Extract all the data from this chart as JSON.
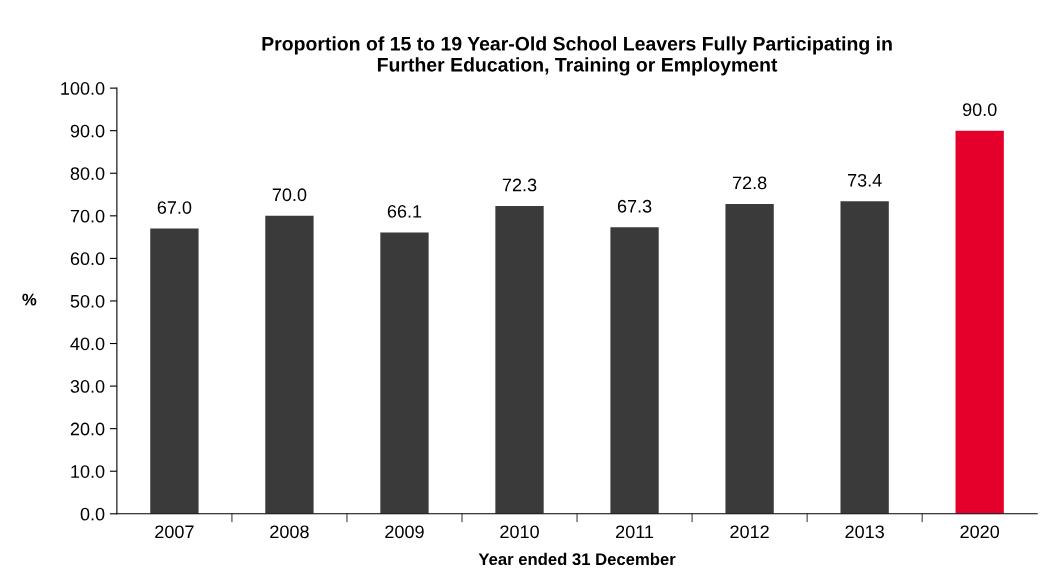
{
  "chart_data": {
    "type": "bar",
    "title": "Proportion of 15 to 19 Year-Old School Leavers Fully Participating in\nFurther Education, Training or Employment",
    "xlabel": "Year ended 31 December",
    "ylabel": "%",
    "categories": [
      "2007",
      "2008",
      "2009",
      "2010",
      "2011",
      "2012",
      "2013",
      "2020"
    ],
    "values": [
      67.0,
      70.0,
      66.1,
      72.3,
      67.3,
      72.8,
      73.4,
      90.0
    ],
    "value_labels": [
      "67.0",
      "70.0",
      "66.1",
      "72.3",
      "67.3",
      "72.8",
      "73.4",
      "90.0"
    ],
    "colors": [
      "#3a3a3a",
      "#3a3a3a",
      "#3a3a3a",
      "#3a3a3a",
      "#3a3a3a",
      "#3a3a3a",
      "#3a3a3a",
      "#e4002b"
    ],
    "ylim": [
      0,
      100
    ],
    "yticks": [
      {
        "value": 0,
        "label": "0.0"
      },
      {
        "value": 10,
        "label": "10.0"
      },
      {
        "value": 20,
        "label": "20.0"
      },
      {
        "value": 30,
        "label": "30.0"
      },
      {
        "value": 40,
        "label": "40.0"
      },
      {
        "value": 50,
        "label": "50.0"
      },
      {
        "value": 60,
        "label": "60.0"
      },
      {
        "value": 70,
        "label": "70.0"
      },
      {
        "value": 80,
        "label": "80.0"
      },
      {
        "value": 90,
        "label": "90.0"
      },
      {
        "value": 100,
        "label": "100.0"
      }
    ],
    "grid": false,
    "legend": false
  }
}
